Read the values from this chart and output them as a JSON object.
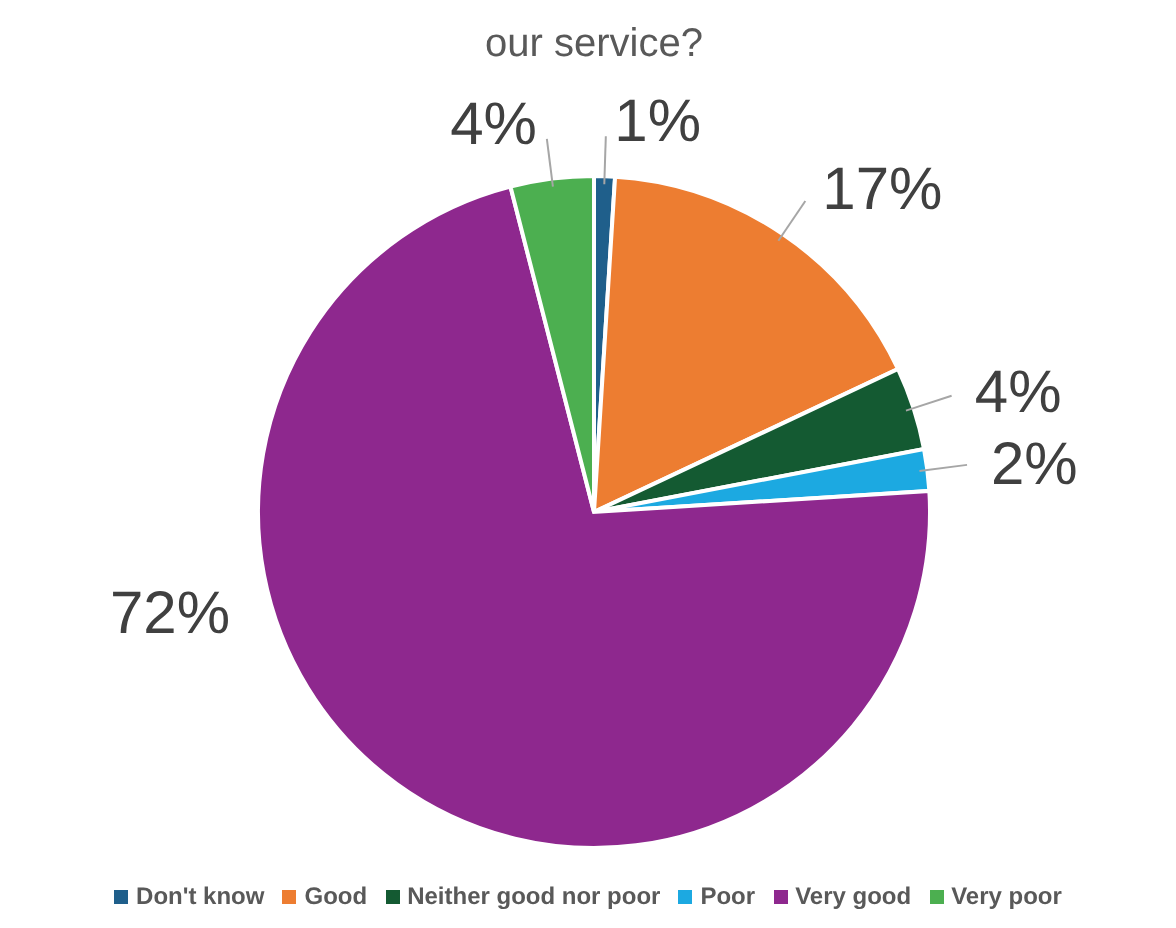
{
  "chart_data": {
    "type": "pie",
    "title": "our service?",
    "categories": [
      "Don't know",
      "Good",
      "Neither good nor poor",
      "Poor",
      "Very good",
      "Very poor"
    ],
    "values": [
      1,
      17,
      4,
      2,
      72,
      4
    ],
    "colors": [
      "#1f5f8b",
      "#ed7d31",
      "#145a32",
      "#1ca9e1",
      "#8e288e",
      "#4caf50"
    ],
    "value_labels": [
      "1%",
      "17%",
      "4%",
      "2%",
      "72%",
      "4%"
    ],
    "legend": "bottom"
  }
}
